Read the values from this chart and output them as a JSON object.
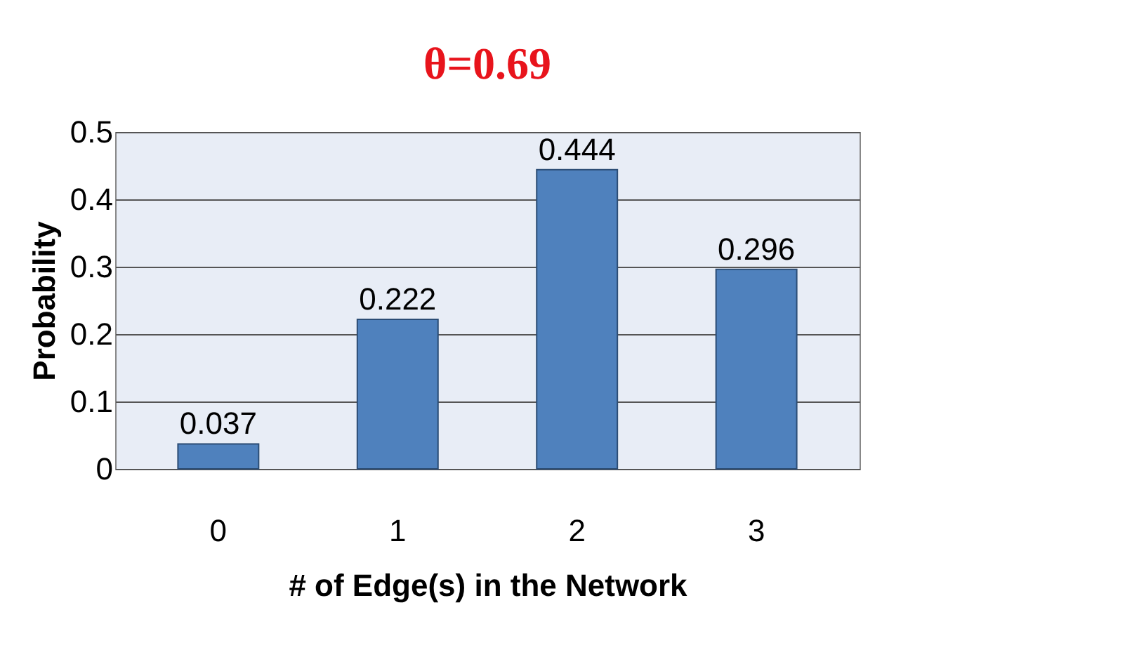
{
  "chart_data": {
    "type": "bar",
    "title": "θ=0.69",
    "xlabel": "# of Edge(s) in the Network",
    "ylabel": "Probability",
    "categories": [
      "0",
      "1",
      "2",
      "3"
    ],
    "values": [
      0.037,
      0.222,
      0.444,
      0.296
    ],
    "color": "#4f81bd",
    "ylim": [
      0,
      0.5
    ],
    "yticks": [
      0,
      0.1,
      0.2,
      0.3,
      0.4,
      0.5
    ],
    "grid": "y",
    "data_labels": true
  }
}
